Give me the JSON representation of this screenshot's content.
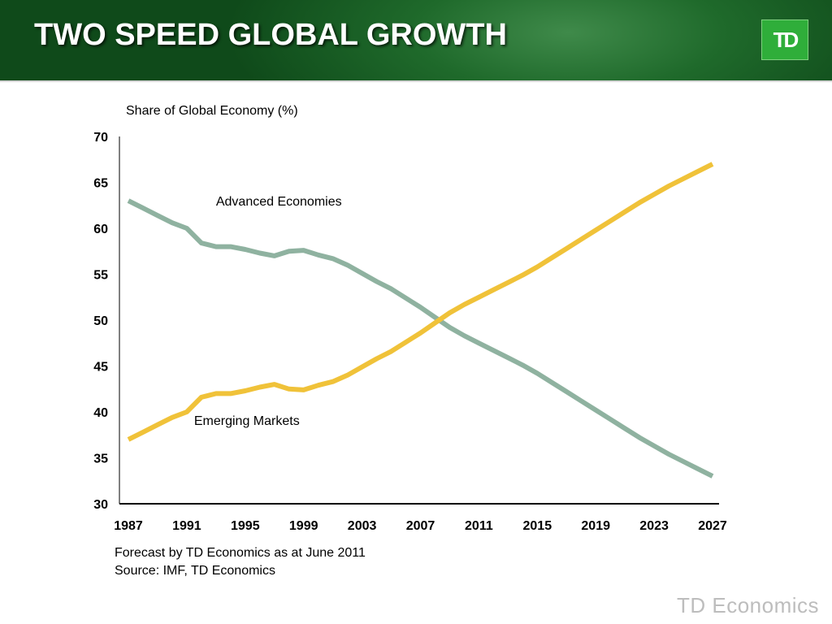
{
  "slide": {
    "title": "TWO SPEED GLOBAL GROWTH",
    "logo_text": "TD",
    "brand_text": "TD Economics",
    "colors": {
      "header_green": "#1f6a2b",
      "logo_green": "#2fae3a"
    }
  },
  "notes": {
    "forecast": "Forecast by TD Economics as at June 2011",
    "source": "Source: IMF, TD Economics"
  },
  "chart_data": {
    "type": "line",
    "title": "",
    "ylabel": "Share of Global Economy (%)",
    "xlabel": "",
    "ylim": [
      30,
      70
    ],
    "y_ticks": [
      30,
      35,
      40,
      45,
      50,
      55,
      60,
      65,
      70
    ],
    "xlim": [
      1987,
      2027
    ],
    "x_ticks": [
      1987,
      1991,
      1995,
      1999,
      2003,
      2007,
      2011,
      2015,
      2019,
      2023,
      2027
    ],
    "grid": false,
    "x": [
      1987,
      1988,
      1989,
      1990,
      1991,
      1992,
      1993,
      1994,
      1995,
      1996,
      1997,
      1998,
      1999,
      2000,
      2001,
      2002,
      2003,
      2004,
      2005,
      2006,
      2007,
      2008,
      2009,
      2010,
      2011,
      2012,
      2013,
      2014,
      2015,
      2016,
      2017,
      2018,
      2019,
      2020,
      2021,
      2022,
      2023,
      2024,
      2025,
      2026,
      2027
    ],
    "series": [
      {
        "name": "Advanced Economies",
        "color": "#8fb2a0",
        "values": [
          63.0,
          62.2,
          61.4,
          60.6,
          60.0,
          58.4,
          58.0,
          58.0,
          57.7,
          57.3,
          57.0,
          57.5,
          57.6,
          57.1,
          56.7,
          56.0,
          55.1,
          54.2,
          53.4,
          52.4,
          51.4,
          50.3,
          49.2,
          48.3,
          47.5,
          46.7,
          45.9,
          45.1,
          44.2,
          43.2,
          42.2,
          41.2,
          40.2,
          39.2,
          38.2,
          37.2,
          36.3,
          35.4,
          34.6,
          33.8,
          33.0
        ],
        "label_at": [
          1993,
          62.5
        ]
      },
      {
        "name": "Emerging Markets",
        "color": "#f0c239",
        "values": [
          37.0,
          37.8,
          38.6,
          39.4,
          40.0,
          41.6,
          42.0,
          42.0,
          42.3,
          42.7,
          43.0,
          42.5,
          42.4,
          42.9,
          43.3,
          44.0,
          44.9,
          45.8,
          46.6,
          47.6,
          48.6,
          49.7,
          50.8,
          51.7,
          52.5,
          53.3,
          54.1,
          54.9,
          55.8,
          56.8,
          57.8,
          58.8,
          59.8,
          60.8,
          61.8,
          62.8,
          63.7,
          64.6,
          65.4,
          66.2,
          67.0
        ],
        "label_at": [
          1991.5,
          38.6
        ]
      }
    ]
  }
}
